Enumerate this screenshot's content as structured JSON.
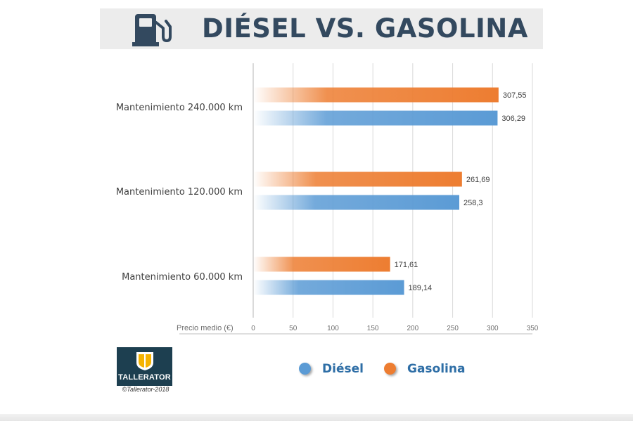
{
  "title": "DIÉSEL VS. GASOLINA",
  "icons": {
    "title_icon": "fuel-pump-icon",
    "logo_icon": "shield-icon"
  },
  "logo": {
    "name": "TALLERATOR",
    "copyright": "©Tallerator-2018"
  },
  "colors": {
    "diesel": "#5b9bd5",
    "gasolina": "#ed7d31",
    "title_text": "#33495f",
    "logo_bg": "#1d3f50",
    "legend_text": "#2e6ea6"
  },
  "chart_data": {
    "type": "bar",
    "orientation": "horizontal",
    "title": "DIÉSEL VS. GASOLINA",
    "xlabel": "Precio medio (€)",
    "ylabel": "",
    "xlim": [
      0,
      350
    ],
    "xticks": [
      0,
      50,
      100,
      150,
      200,
      250,
      300,
      350
    ],
    "grid": true,
    "legend_position": "bottom",
    "categories": [
      "Mantenimiento 240.000 km",
      "Mantenimiento 120.000 km",
      "Mantenimiento 60.000 km"
    ],
    "series": [
      {
        "name": "Gasolina",
        "values": [
          307.55,
          261.69,
          171.61
        ],
        "labels": [
          "307,55",
          "261,69",
          "171,61"
        ]
      },
      {
        "name": "Diésel",
        "values": [
          306.29,
          258.3,
          189.14
        ],
        "labels": [
          "306,29",
          "258,3",
          "189,14"
        ]
      }
    ]
  },
  "legend": [
    {
      "name": "Diésel",
      "series": 1
    },
    {
      "name": "Gasolina",
      "series": 0
    }
  ]
}
